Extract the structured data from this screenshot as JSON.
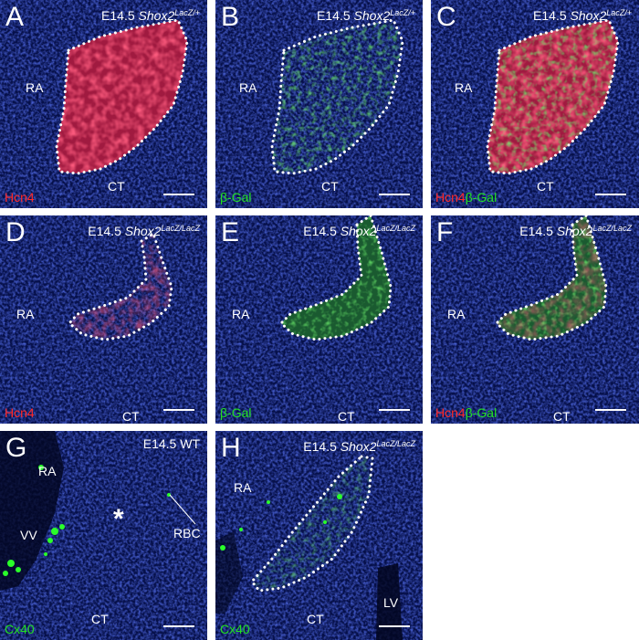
{
  "panels": {
    "A": {
      "letter": "A",
      "title_prefix": "E14.5 ",
      "gene": "Shox2",
      "genotype": "LacZ/+",
      "label_ra": "RA",
      "label_ct": "CT",
      "stain1": "Hcn4",
      "stain2": ""
    },
    "B": {
      "letter": "B",
      "title_prefix": "E14.5 ",
      "gene": "Shox2",
      "genotype": "LacZ/+",
      "label_ra": "RA",
      "label_ct": "CT",
      "stain1": "",
      "stain2": "β-Gal"
    },
    "C": {
      "letter": "C",
      "title_prefix": "E14.5 ",
      "gene": "Shox2",
      "genotype": "LacZ/+",
      "label_ra": "RA",
      "label_ct": "CT",
      "stain1": "Hcn4",
      "stain2": "β-Gal"
    },
    "D": {
      "letter": "D",
      "title_prefix": "E14.5 ",
      "gene": "Shox2",
      "genotype": "LacZ/LacZ",
      "label_ra": "RA",
      "label_ct": "CT",
      "stain1": "Hcn4",
      "stain2": ""
    },
    "E": {
      "letter": "E",
      "title_prefix": "E14.5 ",
      "gene": "Shox2",
      "genotype": "LacZ/LacZ",
      "label_ra": "RA",
      "label_ct": "CT",
      "stain1": "",
      "stain2": "β-Gal"
    },
    "F": {
      "letter": "F",
      "title_prefix": "E14.5 ",
      "gene": "Shox2",
      "genotype": "LacZ/LacZ",
      "label_ra": "RA",
      "label_ct": "CT",
      "stain1": "Hcn4",
      "stain2": "β-Gal"
    },
    "G": {
      "letter": "G",
      "title": "E14.5 WT",
      "label_ra": "RA",
      "label_vv": "VV",
      "label_rbc": "RBC",
      "label_ct": "CT",
      "asterisk": "*",
      "stain2": "Cx40"
    },
    "H": {
      "letter": "H",
      "title_prefix": "E14.5 ",
      "gene": "Shox2",
      "genotype": "LacZ/LacZ",
      "label_ra": "RA",
      "label_ct": "CT",
      "label_lv": "LV",
      "stain2": "Cx40"
    }
  },
  "colors": {
    "background": "#06104a",
    "nuclei": "#1c2fd0",
    "hcn4": "#ff2a2a",
    "beta_gal": "#22e022",
    "cx40": "#22e022",
    "outline": "#ffffff"
  }
}
